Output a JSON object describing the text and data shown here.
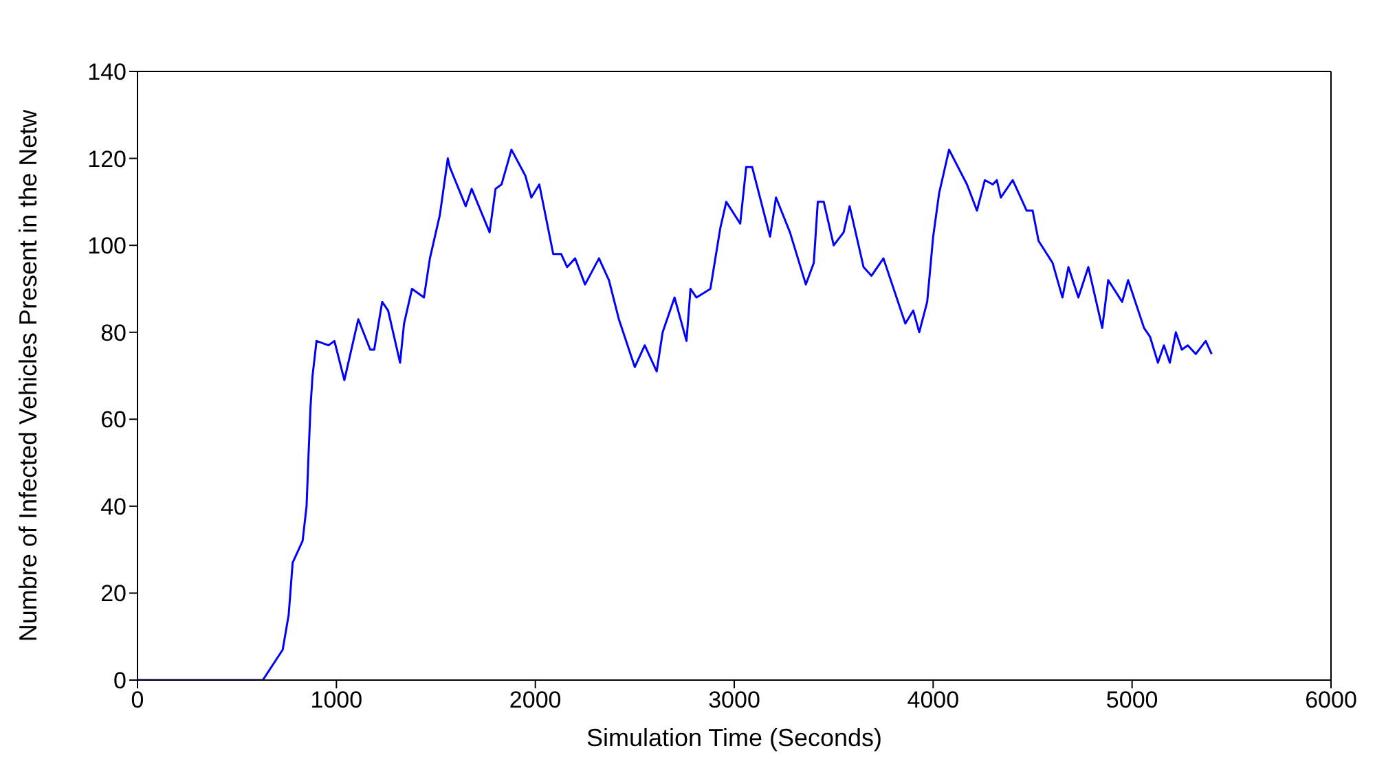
{
  "chart_data": {
    "type": "line",
    "xlabel": "Simulation Time (Seconds)",
    "ylabel": "Numbre of Infected Vehicles Present in the Netw",
    "xlim": [
      0,
      6000
    ],
    "xticks": [
      0,
      1000,
      2000,
      3000,
      4000,
      5000,
      6000
    ],
    "ylim": [
      0,
      140
    ],
    "yticks": [
      0,
      20,
      40,
      60,
      80,
      100,
      120,
      140
    ],
    "legend": false,
    "marker": "none",
    "line_style": "solid",
    "series": [
      {
        "color": "#0000ff",
        "x": [
          0,
          630,
          730,
          760,
          780,
          830,
          850,
          860,
          870,
          880,
          900,
          960,
          990,
          1040,
          1110,
          1170,
          1190,
          1230,
          1260,
          1320,
          1340,
          1380,
          1440,
          1470,
          1520,
          1560,
          1570,
          1650,
          1680,
          1770,
          1800,
          1830,
          1880,
          1950,
          1980,
          2020,
          2090,
          2130,
          2160,
          2200,
          2250,
          2320,
          2370,
          2420,
          2500,
          2550,
          2610,
          2640,
          2700,
          2760,
          2780,
          2810,
          2880,
          2930,
          2960,
          3030,
          3060,
          3090,
          3180,
          3210,
          3280,
          3360,
          3400,
          3420,
          3450,
          3500,
          3550,
          3580,
          3650,
          3690,
          3750,
          3860,
          3900,
          3930,
          3970,
          4000,
          4030,
          4080,
          4170,
          4220,
          4260,
          4300,
          4320,
          4340,
          4400,
          4470,
          4500,
          4530,
          4600,
          4650,
          4680,
          4730,
          4780,
          4850,
          4880,
          4950,
          4980,
          5060,
          5090,
          5130,
          5160,
          5190,
          5220,
          5250,
          5280,
          5320,
          5370,
          5400
        ],
        "values": [
          0,
          0,
          7,
          15,
          27,
          32,
          40,
          52,
          63,
          70,
          78,
          77,
          78,
          69,
          83,
          76,
          76,
          87,
          85,
          73,
          82,
          90,
          88,
          97,
          107,
          120,
          118,
          109,
          113,
          103,
          113,
          114,
          122,
          116,
          111,
          114,
          98,
          98,
          95,
          97,
          91,
          97,
          92,
          83,
          72,
          77,
          71,
          80,
          88,
          78,
          90,
          88,
          90,
          104,
          110,
          105,
          118,
          118,
          102,
          111,
          103,
          91,
          96,
          110,
          110,
          100,
          103,
          109,
          95,
          93,
          97,
          82,
          85,
          80,
          87,
          102,
          112,
          122,
          114,
          108,
          115,
          114,
          115,
          111,
          115,
          108,
          108,
          101,
          96,
          88,
          95,
          88,
          95,
          81,
          92,
          87,
          92,
          81,
          79,
          73,
          77,
          73,
          80,
          76,
          77,
          75,
          78,
          75
        ]
      }
    ]
  }
}
